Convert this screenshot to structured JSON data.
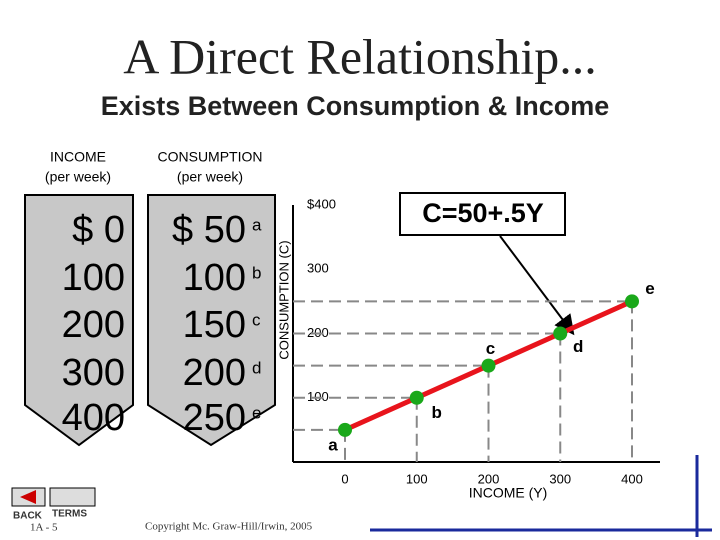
{
  "title": "A Direct Relationship...",
  "subtitle": "Exists Between Consumption & Income",
  "table": {
    "headers": [
      [
        "INCOME",
        "(per week)"
      ],
      [
        "CONSUMPTION",
        "(per week)"
      ]
    ],
    "income": [
      "$ 0",
      "100",
      "200",
      "300",
      "400"
    ],
    "consumption": [
      "$ 50",
      "100",
      "150",
      "200",
      "250"
    ]
  },
  "chart_data": {
    "type": "line",
    "y_label": "CONSUMPTION (C)",
    "x_label": "INCOME (Y)",
    "annotation": "C=50+.5Y",
    "x": [
      0,
      100,
      200,
      300,
      400
    ],
    "series": [
      {
        "color": "#e8141c",
        "values": [
          50,
          100,
          150,
          200,
          250
        ]
      }
    ],
    "point_labels": [
      "a",
      "b",
      "c",
      "d",
      "e"
    ],
    "point_color": "#1aa81a",
    "xlim": [
      0,
      400
    ],
    "ylim": [
      0,
      400
    ],
    "xticks": [
      0,
      100,
      200,
      300,
      400
    ],
    "yticks": [
      100,
      200,
      300,
      {
        "value": 400,
        "label": "$400"
      }
    ]
  },
  "footer": {
    "back": "BACK",
    "terms": "TERMS",
    "slide": "1A - 5",
    "copyright": "Copyright Mc. Graw-Hill/Irwin, 2005"
  }
}
